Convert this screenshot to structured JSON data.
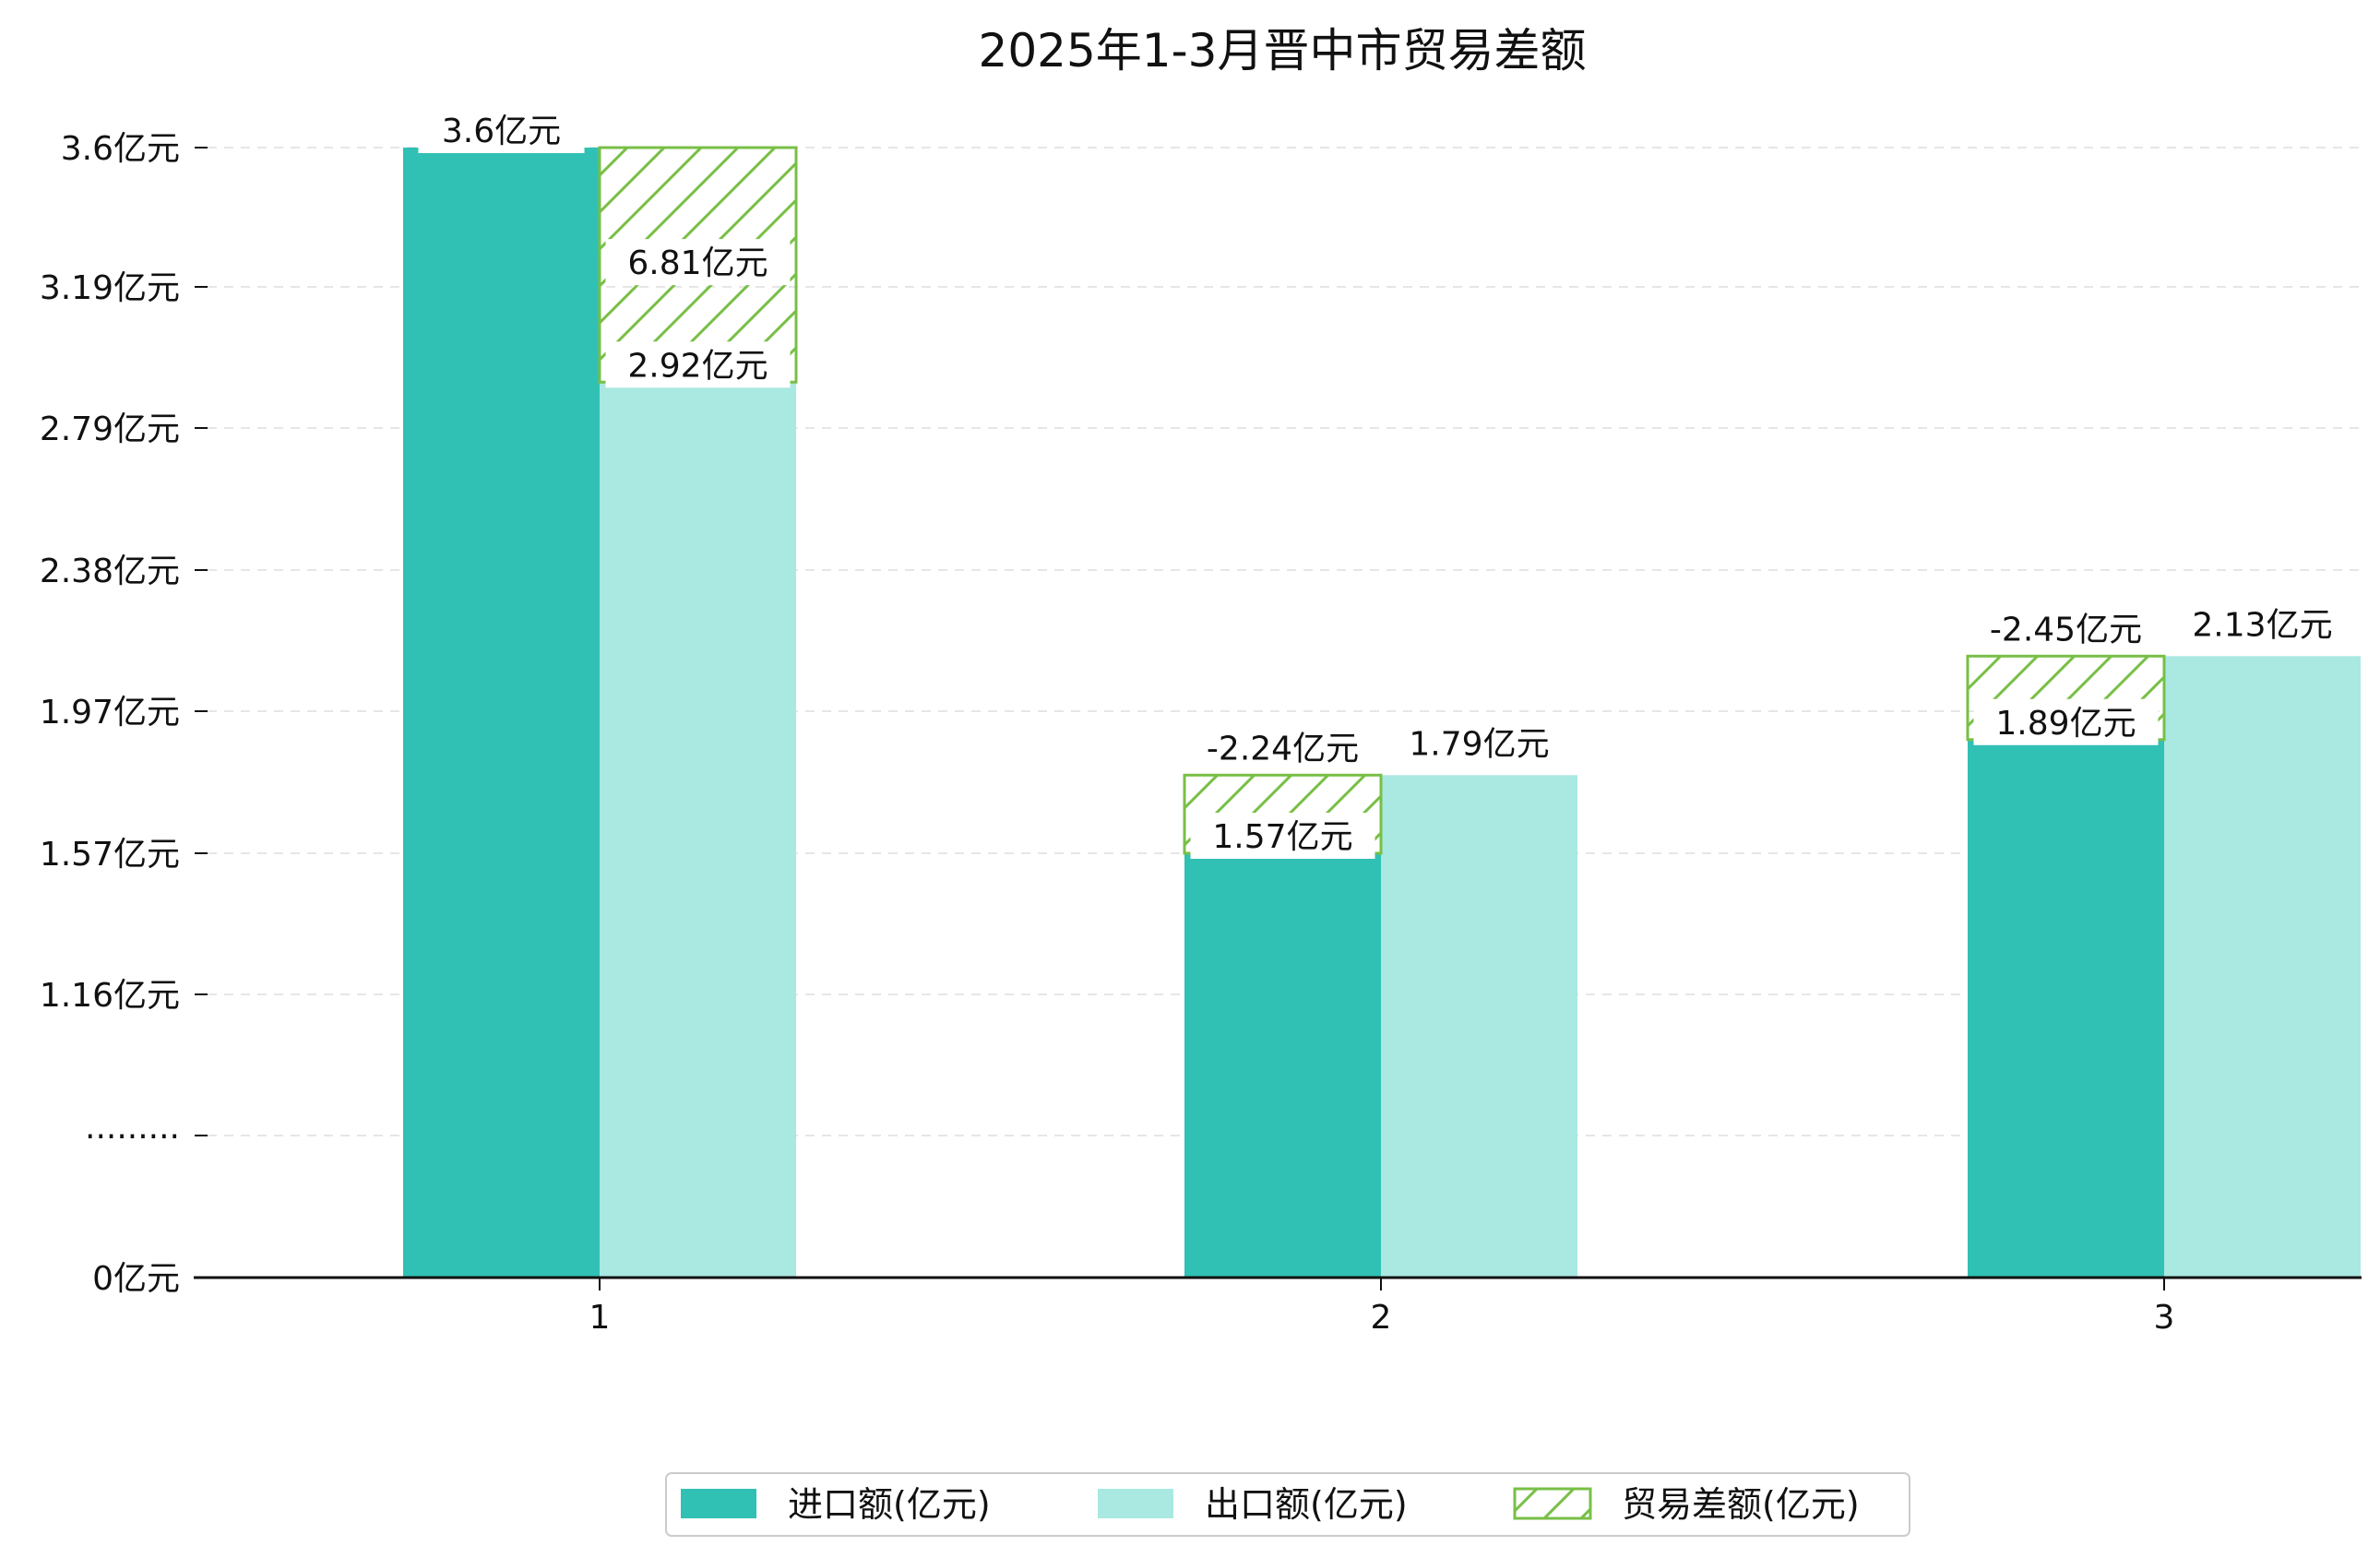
{
  "chart_data": {
    "type": "bar",
    "title": "2025年1-3月晋中市贸易差额",
    "categories": [
      "1",
      "2",
      "3"
    ],
    "y_tick_labels": [
      "0亿元",
      "·········",
      "1.16亿元",
      "1.57亿元",
      "1.97亿元",
      "2.38亿元",
      "2.79亿元",
      "3.19亿元",
      "3.6亿元"
    ],
    "y_tick_values": [
      0,
      0.76,
      1.16,
      1.57,
      1.97,
      2.38,
      2.79,
      3.19,
      3.6
    ],
    "ylim": [
      0,
      3.6
    ],
    "axis_break": true,
    "grid": true,
    "legend_position": "bottom-center",
    "series": [
      {
        "name": "进口额(亿元)",
        "color": "#31c0b4",
        "values": [
          3.6,
          1.57,
          1.89
        ],
        "labels": [
          "3.6亿元",
          "1.57亿元",
          "1.89亿元"
        ]
      },
      {
        "name": "出口额(亿元)",
        "color": "#aae8e2",
        "values": [
          2.92,
          1.79,
          2.13
        ],
        "labels": [
          "2.92亿元",
          "1.79亿元",
          "2.13亿元"
        ]
      },
      {
        "name": "贸易差额(亿元)",
        "color": "#78bf46",
        "pattern": "hatch",
        "values": [
          6.81,
          -2.24,
          -2.45
        ],
        "labels": [
          "6.81亿元",
          "-2.24亿元",
          "-2.45亿元"
        ]
      }
    ]
  }
}
